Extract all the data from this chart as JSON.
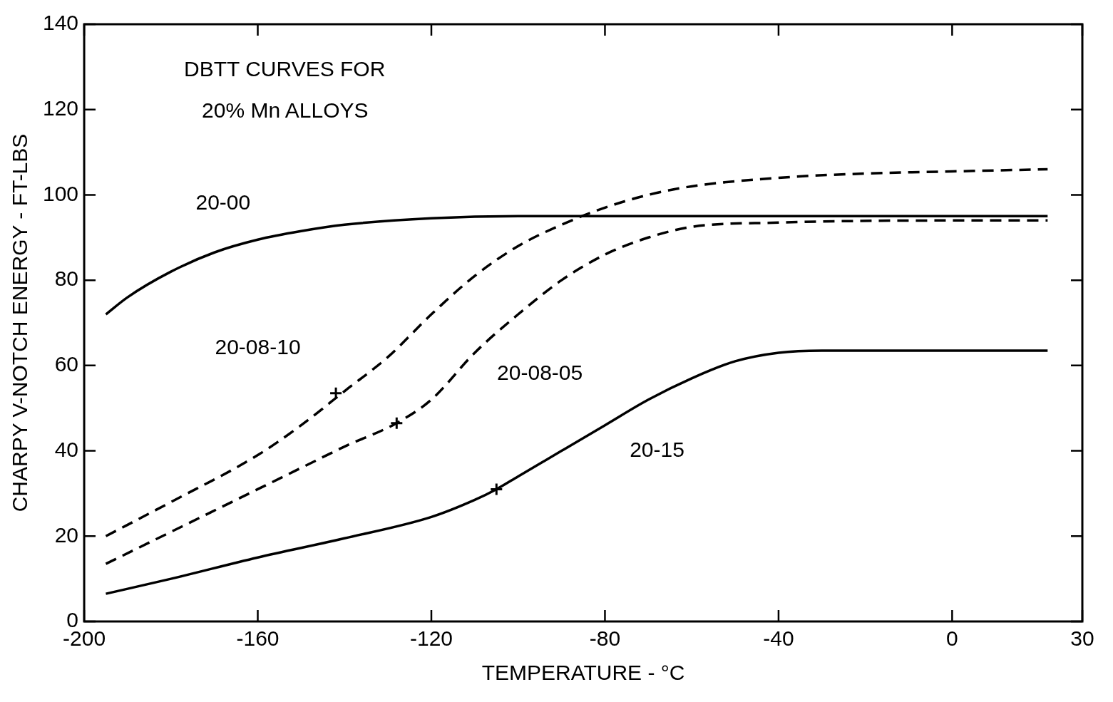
{
  "chart_data": {
    "type": "line",
    "title": "DBTT CURVES FOR\n20% Mn ALLOYS",
    "xlabel": "TEMPERATURE - °C",
    "ylabel": "CHARPY V-NOTCH ENERGY - FT-LBS",
    "xlim": [
      -200,
      30
    ],
    "xticks": [
      -200,
      -160,
      -120,
      -80,
      -40,
      0,
      30
    ],
    "ylim": [
      0,
      140
    ],
    "yticks": [
      0,
      20,
      40,
      60,
      80,
      100,
      120,
      140
    ],
    "grid": false,
    "legend": false,
    "marker": "none",
    "series": [
      {
        "name": "20-00",
        "color": "#000000",
        "line_style": "solid",
        "x": [
          -195,
          -190,
          -180,
          -170,
          -160,
          -150,
          -140,
          -120,
          -100,
          -80,
          -40,
          0,
          22
        ],
        "values": [
          72,
          76,
          82,
          86.5,
          89.5,
          91.5,
          93,
          94.5,
          95,
          95,
          95,
          95,
          95
        ]
      },
      {
        "name": "20-08-10",
        "color": "#000000",
        "line_style": "dashed",
        "x": [
          -195,
          -180,
          -160,
          -150,
          -140,
          -130,
          -120,
          -110,
          -100,
          -90,
          -80,
          -70,
          -60,
          -40,
          -20,
          0,
          22
        ],
        "values": [
          20,
          28,
          39,
          46,
          54,
          62,
          72,
          81,
          88,
          93,
          97,
          100,
          102,
          104,
          105,
          105.5,
          106
        ]
      },
      {
        "name": "20-08-05",
        "color": "#000000",
        "line_style": "dashed",
        "x": [
          -195,
          -180,
          -160,
          -150,
          -140,
          -128,
          -120,
          -110,
          -100,
          -90,
          -80,
          -70,
          -60,
          -40,
          0,
          22
        ],
        "values": [
          13.5,
          21,
          31,
          36,
          41,
          46.5,
          52,
          63,
          72,
          80,
          86,
          90,
          92.5,
          93.5,
          94,
          94
        ]
      },
      {
        "name": "20-15",
        "color": "#000000",
        "line_style": "solid",
        "x": [
          -195,
          -180,
          -160,
          -140,
          -120,
          -110,
          -105,
          -100,
          -90,
          -80,
          -70,
          -60,
          -50,
          -40,
          -30,
          22
        ],
        "values": [
          6.5,
          10,
          15,
          19.5,
          24.5,
          28.5,
          31,
          34,
          40,
          46,
          52,
          57,
          61,
          63,
          63.5,
          63.5
        ]
      },
      {
        "type": "scatter",
        "color": "#000000",
        "marker": "cross",
        "x": [
          -142,
          -128,
          -105
        ],
        "values": [
          53.5,
          46.5,
          31
        ]
      }
    ]
  }
}
